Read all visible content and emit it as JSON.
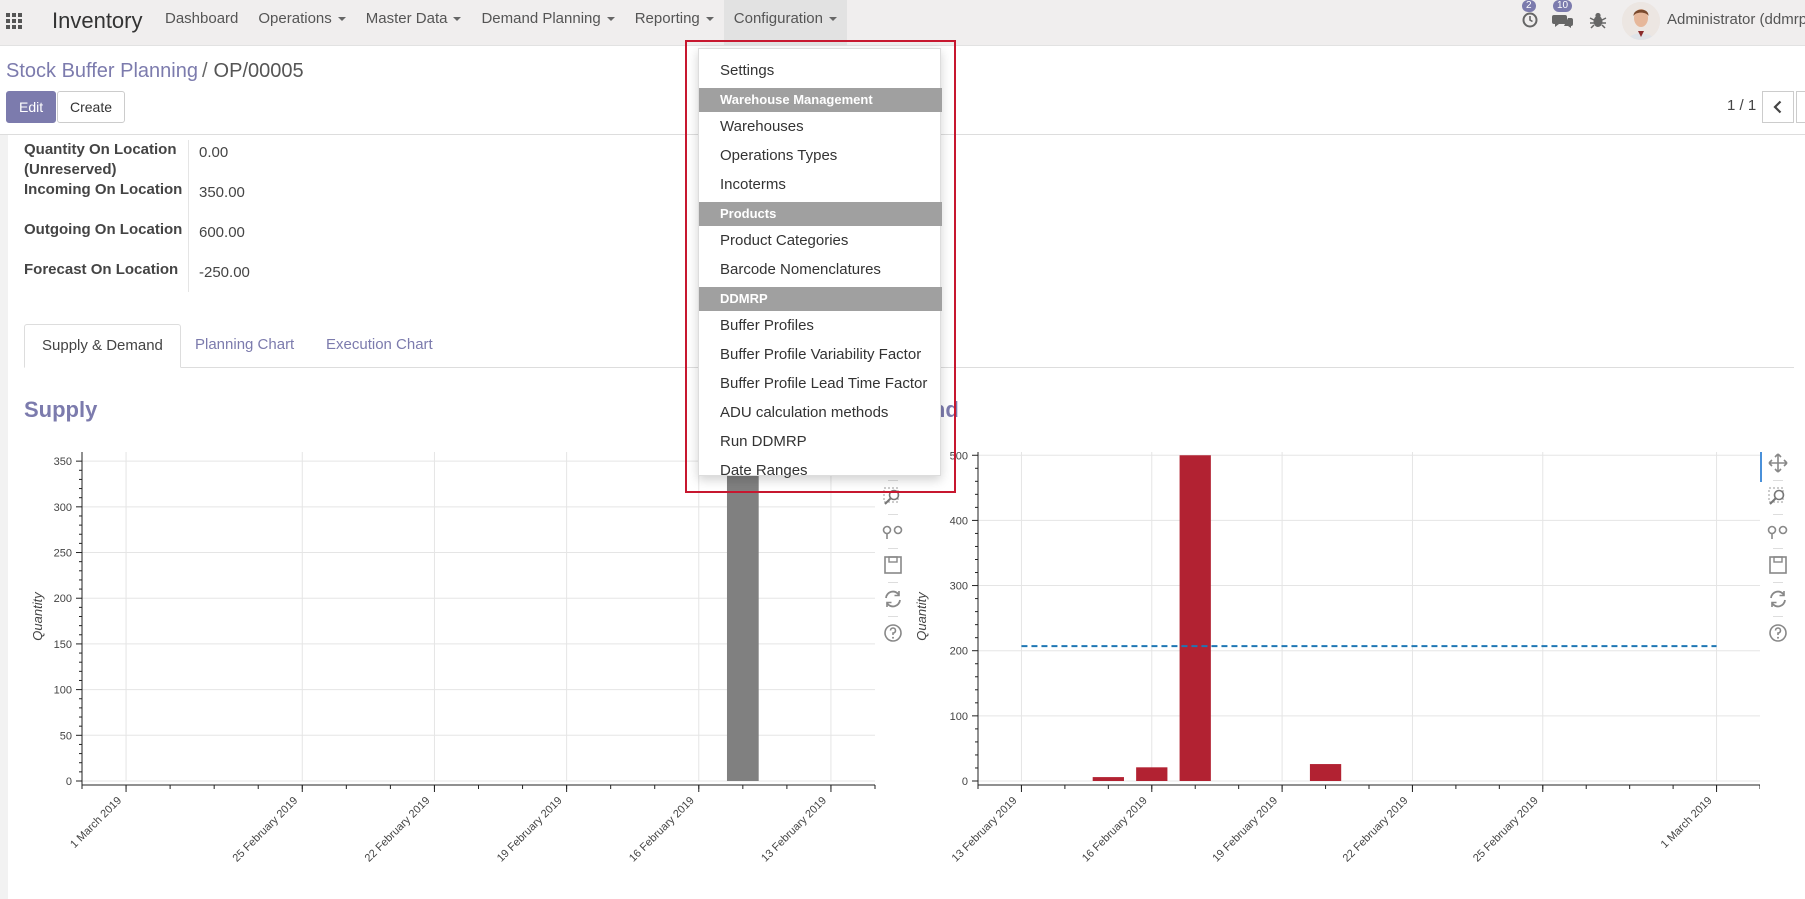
{
  "navbar": {
    "app_title": "Inventory",
    "menu": [
      {
        "label": "Dashboard",
        "has_caret": false
      },
      {
        "label": "Operations",
        "has_caret": true
      },
      {
        "label": "Master Data",
        "has_caret": true
      },
      {
        "label": "Demand Planning",
        "has_caret": true
      },
      {
        "label": "Reporting",
        "has_caret": true
      },
      {
        "label": "Configuration",
        "has_caret": true,
        "active": true
      }
    ],
    "activity_count": "2",
    "messages_count": "10",
    "user_name": "Administrator (ddmrp_"
  },
  "breadcrumb": {
    "parent": "Stock Buffer Planning",
    "separator": "/",
    "current": "OP/00005"
  },
  "buttons": {
    "edit": "Edit",
    "create": "Create"
  },
  "pager": {
    "value": "1 / 1"
  },
  "fields": [
    {
      "label": "Quantity On Location (Unreserved)",
      "value": "0.00"
    },
    {
      "label": "Incoming On Location",
      "value": "350.00"
    },
    {
      "label": "Outgoing On Location",
      "value": "600.00"
    },
    {
      "label": "Forecast On Location",
      "value": "-250.00"
    }
  ],
  "tabs": [
    {
      "label": "Supply & Demand",
      "active": true
    },
    {
      "label": "Planning Chart",
      "active": false
    },
    {
      "label": "Execution Chart",
      "active": false
    }
  ],
  "sections": {
    "supply": "Supply",
    "demand": "Demand"
  },
  "dropdown": {
    "items": [
      {
        "type": "item",
        "label": "Settings"
      },
      {
        "type": "header",
        "label": "Warehouse Management"
      },
      {
        "type": "item",
        "label": "Warehouses"
      },
      {
        "type": "item",
        "label": "Operations Types"
      },
      {
        "type": "item",
        "label": "Incoterms"
      },
      {
        "type": "header",
        "label": "Products"
      },
      {
        "type": "item",
        "label": "Product Categories"
      },
      {
        "type": "item",
        "label": "Barcode Nomenclatures"
      },
      {
        "type": "header",
        "label": "DDMRP"
      },
      {
        "type": "item",
        "label": "Buffer Profiles"
      },
      {
        "type": "item",
        "label": "Buffer Profile Variability Factor"
      },
      {
        "type": "item",
        "label": "Buffer Profile Lead Time Factor"
      },
      {
        "type": "item",
        "label": "ADU calculation methods"
      },
      {
        "type": "item",
        "label": "Run DDMRP"
      },
      {
        "type": "item",
        "label": "Date Ranges"
      }
    ],
    "highlight_color": "#c7172f"
  },
  "colors": {
    "brand": "#7c7bad",
    "supply_bar": "#808080",
    "demand_bar": "#b22232",
    "adu_line": "#1f77b4"
  },
  "chart_data": [
    {
      "type": "bar",
      "title": "Supply",
      "ylabel": "Quantity",
      "xlabel": "",
      "x_axis": "date",
      "x_reversed": true,
      "xlim": [
        "2019-03-02",
        "2019-02-12"
      ],
      "ylim": [
        0,
        360
      ],
      "yticks": [
        0,
        50,
        100,
        150,
        200,
        250,
        300,
        350
      ],
      "xticks": [
        "1 March 2019",
        "25 February 2019",
        "22 February 2019",
        "19 February 2019",
        "16 February 2019",
        "13 February 2019"
      ],
      "xtick_dates": [
        "2019-03-01",
        "2019-02-25",
        "2019-02-22",
        "2019-02-19",
        "2019-02-16",
        "2019-02-13"
      ],
      "bars": [
        {
          "date": "2019-02-15",
          "value": 350
        }
      ],
      "bar_color": "#808080",
      "grid": true
    },
    {
      "type": "bar",
      "title": "Demand",
      "ylabel": "Quantity",
      "xlabel": "",
      "x_axis": "date",
      "x_reversed": false,
      "xlim": [
        "2019-02-12",
        "2019-03-02"
      ],
      "ylim": [
        0,
        505
      ],
      "yticks": [
        0,
        100,
        200,
        300,
        400,
        500
      ],
      "xticks": [
        "13 February 2019",
        "16 February 2019",
        "19 February 2019",
        "22 February 2019",
        "25 February 2019",
        "1 March 2019"
      ],
      "xtick_dates": [
        "2019-02-13",
        "2019-02-16",
        "2019-02-19",
        "2019-02-22",
        "2019-02-25",
        "2019-03-01"
      ],
      "bars": [
        {
          "date": "2019-02-15",
          "value": 6
        },
        {
          "date": "2019-02-16",
          "value": 21
        },
        {
          "date": "2019-02-17",
          "value": 500
        },
        {
          "date": "2019-02-20",
          "value": 26
        }
      ],
      "bar_color": "#b22232",
      "hline": {
        "value": 207,
        "style": "dashed",
        "color": "#1f77b4",
        "from": "2019-02-13",
        "to": "2019-03-01"
      },
      "grid": true
    }
  ]
}
